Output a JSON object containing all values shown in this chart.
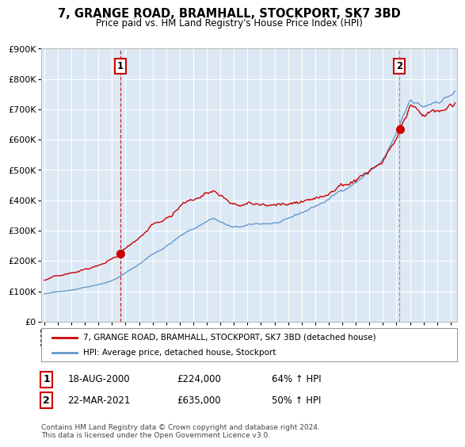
{
  "title": "7, GRANGE ROAD, BRAMHALL, STOCKPORT, SK7 3BD",
  "subtitle": "Price paid vs. HM Land Registry's House Price Index (HPI)",
  "background_color": "#ffffff",
  "plot_bg_color": "#dce9f5",
  "sale1_date_num": 2000.625,
  "sale1_price": 224000,
  "sale2_date_num": 2021.22,
  "sale2_price": 635000,
  "ylim": [
    0,
    900000
  ],
  "xlim_start": 1994.8,
  "xlim_end": 2025.5,
  "legend_line1": "7, GRANGE ROAD, BRAMHALL, STOCKPORT, SK7 3BD (detached house)",
  "legend_line2": "HPI: Average price, detached house, Stockport",
  "table_row1": [
    "1",
    "18-AUG-2000",
    "£224,000",
    "64% ↑ HPI"
  ],
  "table_row2": [
    "2",
    "22-MAR-2021",
    "£635,000",
    "50% ↑ HPI"
  ],
  "footnote": "Contains HM Land Registry data © Crown copyright and database right 2024.\nThis data is licensed under the Open Government Licence v3.0.",
  "red_color": "#cc0000",
  "blue_color": "#6699cc",
  "grid_color": "#ffffff",
  "tick_years": [
    1995,
    1996,
    1997,
    1998,
    1999,
    2000,
    2001,
    2002,
    2003,
    2004,
    2005,
    2006,
    2007,
    2008,
    2009,
    2010,
    2011,
    2012,
    2013,
    2014,
    2015,
    2016,
    2017,
    2018,
    2019,
    2020,
    2021,
    2022,
    2023,
    2024,
    2025
  ]
}
